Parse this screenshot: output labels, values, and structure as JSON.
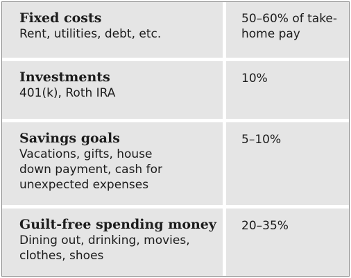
{
  "rows": [
    {
      "title": "Fixed costs",
      "description": "Rent, utilities, debt, etc.",
      "percentage": "50–60% of take-home pay"
    },
    {
      "title": "Investments",
      "description": "401(k), Roth IRA",
      "percentage": "10%"
    },
    {
      "title": "Savings goals",
      "description": "Vacations, gifts, house down payment, cash for unexpected expenses",
      "percentage": "5–10%"
    },
    {
      "title": "Guilt-free spending money",
      "description": "Dining out, drinking, movies, clothes, shoes",
      "percentage": "20–35%"
    }
  ]
}
